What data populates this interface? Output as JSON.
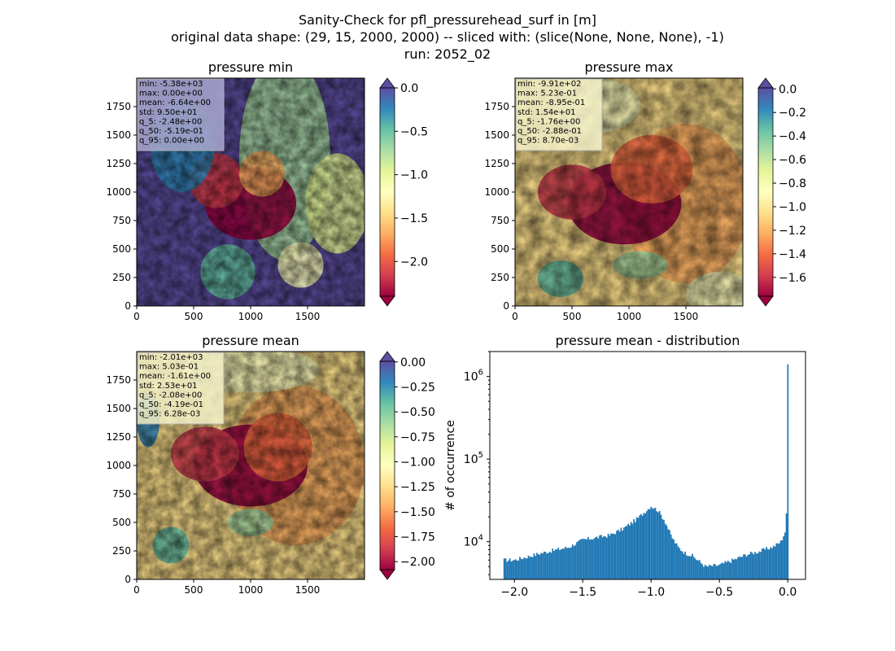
{
  "figure": {
    "title_lines": [
      "Sanity-Check for pfl_pressurehead_surf in [m]",
      "original data shape: (29, 15, 2000, 2000) -- sliced with: (slice(None, None, None), -1)",
      "run: 2052_02"
    ]
  },
  "chart_data": [
    {
      "type": "heatmap",
      "title": "pressure min",
      "xlabel": "",
      "ylabel": "",
      "xlim": [
        0,
        2000
      ],
      "ylim": [
        0,
        2000
      ],
      "xticks": [
        0,
        500,
        1000,
        1500
      ],
      "yticks": [
        0,
        250,
        500,
        750,
        1000,
        1250,
        1500,
        1750
      ],
      "colormap": "Spectral",
      "colorbar": {
        "range": [
          -2.4,
          0.0
        ],
        "ticks": [
          "0.0",
          "−0.5",
          "−1.0",
          "−1.5",
          "−2.0"
        ],
        "tick_values": [
          0.0,
          -0.5,
          -1.0,
          -1.5,
          -2.0
        ],
        "extend": "both"
      },
      "stats": [
        "min: -5.38e+03",
        "max: 0.00e+00",
        "mean: -6.64e+00",
        "std: 9.50e+01",
        "q_5: -2.48e+00",
        "q_50: -5.19e-01",
        "q_95: 0.00e+00"
      ],
      "stats_box_color": "#a9a9d0"
    },
    {
      "type": "heatmap",
      "title": "pressure max",
      "xlabel": "",
      "ylabel": "",
      "xlim": [
        0,
        2000
      ],
      "ylim": [
        0,
        2000
      ],
      "xticks": [
        0,
        500,
        1000,
        1500
      ],
      "yticks": [
        0,
        250,
        500,
        750,
        1000,
        1250,
        1500,
        1750
      ],
      "colormap": "Spectral",
      "colorbar": {
        "range": [
          -1.76,
          0.0087
        ],
        "ticks": [
          "0.0",
          "−0.2",
          "−0.4",
          "−0.6",
          "−0.8",
          "−1.0",
          "−1.2",
          "−1.4",
          "−1.6"
        ],
        "tick_values": [
          0.0,
          -0.2,
          -0.4,
          -0.6,
          -0.8,
          -1.0,
          -1.2,
          -1.4,
          -1.6
        ],
        "extend": "both"
      },
      "stats": [
        "min: -9.91e+02",
        "max: 5.23e-01",
        "mean: -8.95e-01",
        "std: 1.54e+01",
        "q_5: -1.76e+00",
        "q_50: -2.88e-01",
        "q_95: 8.70e-03"
      ],
      "stats_box_color": "#f4f1c8"
    },
    {
      "type": "heatmap",
      "title": "pressure mean",
      "xlabel": "",
      "ylabel": "",
      "xlim": [
        0,
        2000
      ],
      "ylim": [
        0,
        2000
      ],
      "xticks": [
        0,
        500,
        1000,
        1500
      ],
      "yticks": [
        0,
        250,
        500,
        750,
        1000,
        1250,
        1500,
        1750
      ],
      "colormap": "Spectral",
      "colorbar": {
        "range": [
          -2.08,
          0.0063
        ],
        "ticks": [
          "0.00",
          "−0.25",
          "−0.50",
          "−0.75",
          "−1.00",
          "−1.25",
          "−1.50",
          "−1.75",
          "−2.00"
        ],
        "tick_values": [
          0.0,
          -0.25,
          -0.5,
          -0.75,
          -1.0,
          -1.25,
          -1.5,
          -1.75,
          -2.0
        ],
        "extend": "both"
      },
      "stats": [
        "min: -2.01e+03",
        "max: 5.03e-01",
        "mean: -1.61e+00",
        "std: 2.53e+01",
        "q_5: -2.08e+00",
        "q_50: -4.19e-01",
        "q_95: 6.28e-03"
      ],
      "stats_box_color": "#f4f1c8"
    },
    {
      "type": "bar",
      "title": "pressure mean - distribution",
      "xlabel": "",
      "ylabel": "# of occurrence",
      "xlim": [
        -2.18,
        0.13
      ],
      "ylim_log": [
        3500,
        2000000
      ],
      "yscale": "log",
      "xticks": [
        -2.0,
        -1.5,
        -1.0,
        -0.5,
        0.0
      ],
      "xtick_labels": [
        "−2.0",
        "−1.5",
        "−1.0",
        "−0.5",
        "0.0"
      ],
      "yticks": [
        10000,
        100000,
        1000000
      ],
      "ytick_labels": [
        "10^4",
        "10^5",
        "10^6"
      ],
      "color": "#1f77b4",
      "bins_start": -2.08,
      "bins_end": 0.0063,
      "x": [
        -2.0,
        -1.8,
        -1.6,
        -1.5,
        -1.3,
        -1.2,
        -1.1,
        -1.0,
        -0.95,
        -0.9,
        -0.85,
        -0.8,
        -0.75,
        -0.7,
        -0.6,
        -0.5,
        -0.4,
        -0.3,
        -0.2,
        -0.1,
        -0.05,
        -0.02,
        -0.01,
        0.0
      ],
      "values": [
        6000,
        7300,
        8600,
        10500,
        12000,
        14500,
        19000,
        27000,
        24000,
        18000,
        11500,
        8500,
        7300,
        6800,
        5000,
        5200,
        6000,
        7000,
        7700,
        8800,
        10000,
        13000,
        20000,
        1400000
      ]
    }
  ]
}
